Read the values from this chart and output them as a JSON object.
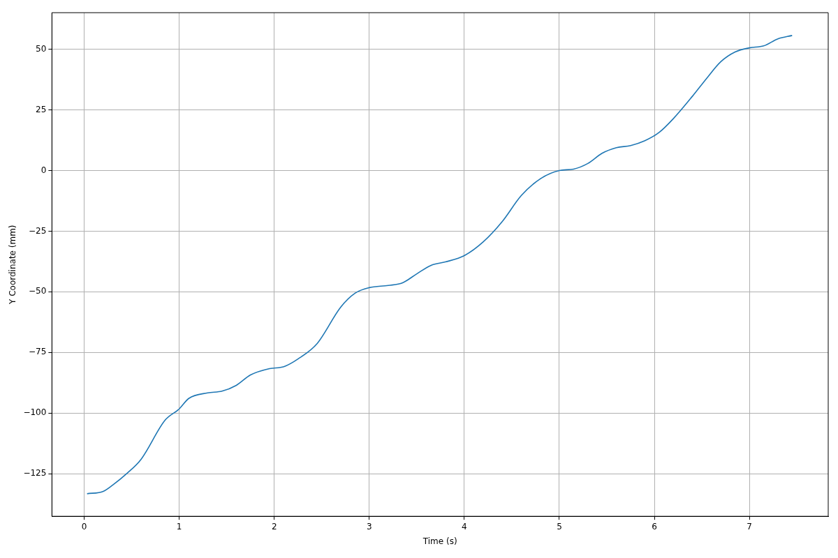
{
  "chart_data": {
    "type": "line",
    "xlabel": "Time (s)",
    "ylabel": "Y Coordinate (mm)",
    "x": [
      0.03,
      0.2,
      0.3,
      0.45,
      0.6,
      0.85,
      1.0,
      1.1,
      1.3,
      1.45,
      1.6,
      1.75,
      1.95,
      2.1,
      2.25,
      2.45,
      2.7,
      2.85,
      3.0,
      3.2,
      3.35,
      3.5,
      3.65,
      3.8,
      4.0,
      4.2,
      4.4,
      4.6,
      4.8,
      5.0,
      5.15,
      5.3,
      5.45,
      5.6,
      5.75,
      5.9,
      6.05,
      6.2,
      6.4,
      6.55,
      6.7,
      6.85,
      7.0,
      7.15,
      7.3,
      7.45
    ],
    "series": [
      {
        "color": "#1f77b4",
        "values": [
          -133.3,
          -132.3,
          -129.7,
          -124.9,
          -119,
          -103,
          -98.3,
          -94,
          -91.7,
          -91,
          -88.6,
          -84.3,
          -81.7,
          -80.9,
          -77.7,
          -71.4,
          -56.3,
          -50.6,
          -48.3,
          -47.4,
          -46.3,
          -42.6,
          -39.1,
          -37.7,
          -35.1,
          -29.4,
          -21,
          -10.3,
          -3.4,
          0,
          0.6,
          2.9,
          7.1,
          9.4,
          10.3,
          12.3,
          15.7,
          21.4,
          30.6,
          38,
          44.9,
          48.9,
          50.6,
          51.4,
          54.3,
          55.7
        ]
      }
    ],
    "xlim": [
      -0.34,
      7.83
    ],
    "ylim": [
      -142.6,
      65.1
    ],
    "xticks": [
      0,
      1,
      2,
      3,
      4,
      5,
      6,
      7
    ],
    "yticks": [
      -125,
      -100,
      -75,
      -50,
      -25,
      0,
      25,
      50
    ],
    "grid": true,
    "legend": false,
    "marker": "none",
    "line_style": "solid"
  }
}
